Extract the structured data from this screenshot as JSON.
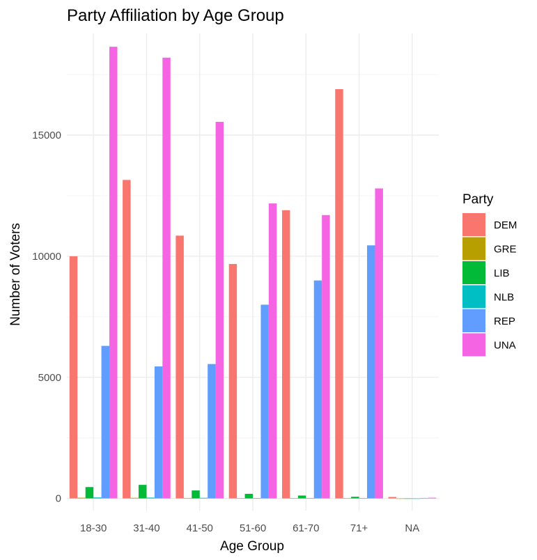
{
  "chart_data": {
    "type": "bar",
    "title": "Party Affiliation by Age Group",
    "xlabel": "Age Group",
    "ylabel": "Number of Voters",
    "categories": [
      "18-30",
      "31-40",
      "41-50",
      "51-60",
      "61-70",
      "71+",
      "NA"
    ],
    "yticks": [
      0,
      5000,
      10000,
      15000
    ],
    "ylim": [
      -500,
      19200
    ],
    "grid": true,
    "legend": {
      "title": "Party",
      "position": "right"
    },
    "series": [
      {
        "name": "DEM",
        "color": "#F8766D",
        "values": [
          10000,
          13150,
          10850,
          9680,
          11900,
          16900,
          60
        ]
      },
      {
        "name": "GRE",
        "color": "#B79F00",
        "values": [
          30,
          25,
          20,
          10,
          10,
          5,
          0
        ]
      },
      {
        "name": "LIB",
        "color": "#00BA38",
        "values": [
          470,
          560,
          330,
          190,
          120,
          70,
          0
        ]
      },
      {
        "name": "NLB",
        "color": "#00BFC4",
        "values": [
          40,
          35,
          25,
          15,
          10,
          5,
          0
        ]
      },
      {
        "name": "REP",
        "color": "#619CFF",
        "values": [
          6300,
          5450,
          5550,
          8000,
          9000,
          10450,
          20
        ]
      },
      {
        "name": "UNA",
        "color": "#F564E3",
        "values": [
          18650,
          18200,
          15550,
          12180,
          11700,
          12800,
          30
        ]
      }
    ]
  }
}
